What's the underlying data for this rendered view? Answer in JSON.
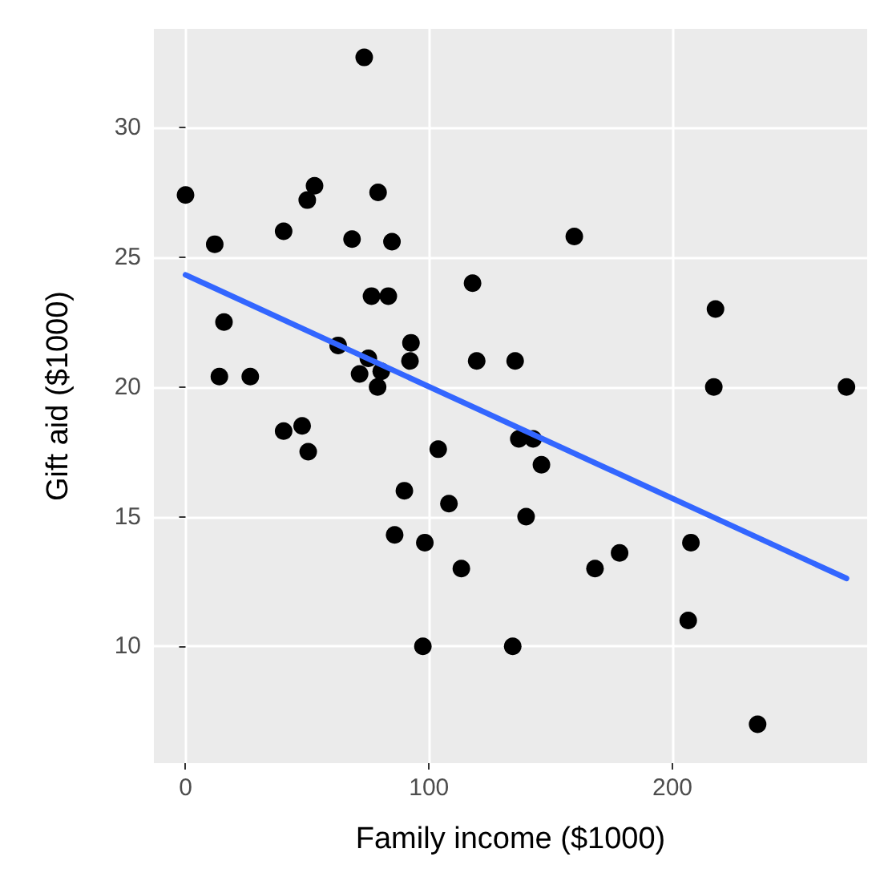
{
  "chart_data": {
    "type": "scatter",
    "xlabel": "Family income ($1000)",
    "ylabel": "Gift aid ($1000)",
    "xlim": [
      -13,
      280
    ],
    "ylim": [
      5.5,
      33.8
    ],
    "xticks": [
      0,
      100,
      200
    ],
    "yticks": [
      10,
      15,
      20,
      25,
      30
    ],
    "grid": true,
    "marker": "circle",
    "series": [
      {
        "color": "#000000",
        "x": [
          0,
          12,
          15.8,
          13.9,
          26.6,
          40.3,
          50,
          53,
          73.4,
          79.1,
          68.4,
          84.8,
          76.4,
          83.3,
          117.9,
          62.7,
          75.1,
          71.5,
          80.4,
          78.9,
          92.6,
          92.2,
          119.6,
          135.4,
          159.7,
          217.7,
          217,
          271.5,
          40.3,
          47.9,
          50.4,
          103.8,
          89.9,
          108.2,
          85.9,
          98.3,
          113.3,
          97.5,
          134.4,
          136.9,
          142.8,
          146.2,
          139.9,
          178.3,
          168.2,
          207.6,
          206.5,
          235
        ],
        "values": [
          27.4,
          25.5,
          22.5,
          20.4,
          20.4,
          26,
          27.2,
          27.75,
          32.7,
          27.5,
          25.7,
          25.6,
          23.5,
          23.5,
          24,
          21.6,
          21.1,
          20.5,
          20.6,
          20,
          21.7,
          21,
          21,
          21,
          25.8,
          23,
          20,
          20,
          18.3,
          18.5,
          17.5,
          17.6,
          16,
          15.5,
          14.3,
          14,
          13,
          10,
          10,
          18,
          18,
          17,
          15,
          13.6,
          13,
          14,
          11,
          7
        ]
      },
      {
        "type": "line",
        "color": "#3366ff",
        "line_style": "solid",
        "marker": "none",
        "x": [
          0,
          271.5
        ],
        "values": [
          24.32,
          12.62
        ]
      }
    ]
  }
}
